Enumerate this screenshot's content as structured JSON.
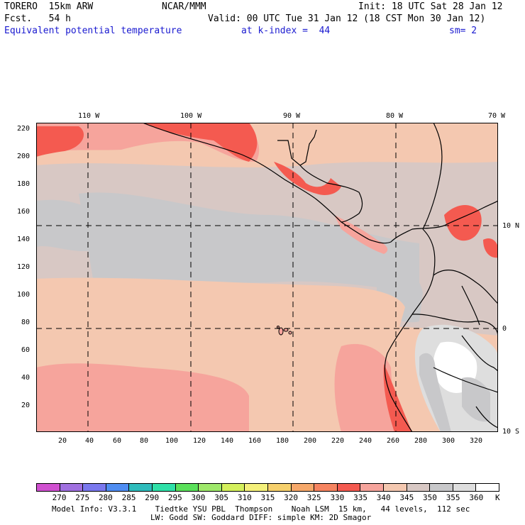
{
  "header": {
    "model": "TORERO  15km ARW",
    "org": "NCAR/MMM",
    "init": "Init: 18 UTC Sat 28 Jan 12",
    "fcst": "Fcst.   54 h",
    "valid": "Valid: 00 UTC Tue 31 Jan 12 (18 CST Mon 30 Jan 12)",
    "field": "Equivalent potential temperature",
    "level": "at k-index =  44",
    "smooth": "sm= 2"
  },
  "axes": {
    "left_ticks": [
      "220",
      "200",
      "180",
      "160",
      "140",
      "120",
      "100",
      "80",
      "60",
      "40",
      "20"
    ],
    "bottom_ticks": [
      "20",
      "40",
      "60",
      "80",
      "100",
      "120",
      "140",
      "160",
      "180",
      "200",
      "220",
      "240",
      "260",
      "280",
      "300",
      "320"
    ],
    "top_lon": [
      "110 W",
      "100 W",
      "90 W",
      "80 W",
      "70 W"
    ],
    "right_lat": [
      "10 N",
      "0",
      "10 S"
    ]
  },
  "colorbar": {
    "labels": [
      "270",
      "275",
      "280",
      "285",
      "290",
      "295",
      "300",
      "305",
      "310",
      "315",
      "320",
      "325",
      "330",
      "335",
      "340",
      "345",
      "350",
      "355",
      "360"
    ],
    "unit": "K",
    "colors": [
      "#d050d0",
      "#a070e0",
      "#7a78ee",
      "#4f8df2",
      "#2ebcbc",
      "#2ee0a8",
      "#5ae05a",
      "#9ee86a",
      "#d4f05c",
      "#f4f07a",
      "#f6d06c",
      "#f6a86a",
      "#f68460",
      "#f45a50",
      "#f6a49c",
      "#f4c8b0",
      "#d8c8c4",
      "#c8c8ca",
      "#dedede",
      "#ffffff"
    ]
  },
  "footer": {
    "line1": "Model Info: V3.3.1    Tiedtke YSU PBL  Thompson    Noah LSM  15 km,   44 levels,  112 sec",
    "line2": "LW: Godd SW: Goddard DIFF: simple KM: 2D Smagor"
  }
}
